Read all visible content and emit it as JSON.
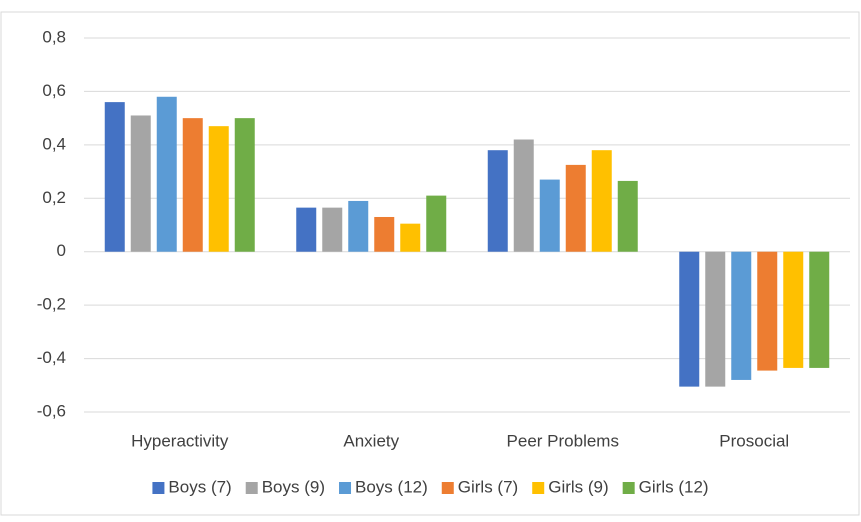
{
  "chart_data": {
    "type": "bar",
    "categories": [
      "Hyperactivity",
      "Anxiety",
      "Peer Problems",
      "Prosocial"
    ],
    "series": [
      {
        "name": "Boys (7)",
        "color": "#4472c4",
        "values": [
          0.56,
          0.165,
          0.38,
          -0.505
        ]
      },
      {
        "name": "Boys (9)",
        "color": "#a5a5a5",
        "values": [
          0.51,
          0.165,
          0.42,
          -0.505
        ]
      },
      {
        "name": "Boys (12)",
        "color": "#5b9bd5",
        "values": [
          0.58,
          0.19,
          0.27,
          -0.48
        ]
      },
      {
        "name": "Girls (7)",
        "color": "#ed7d31",
        "values": [
          0.5,
          0.13,
          0.325,
          -0.445
        ]
      },
      {
        "name": "Girls (9)",
        "color": "#ffc000",
        "values": [
          0.47,
          0.105,
          0.38,
          -0.435
        ]
      },
      {
        "name": "Girls (12)",
        "color": "#70ad47",
        "values": [
          0.5,
          0.21,
          0.265,
          -0.435
        ]
      }
    ],
    "ylim": [
      -0.6,
      0.8
    ],
    "yticks": [
      {
        "value": -0.6,
        "label": "-0,6"
      },
      {
        "value": -0.4,
        "label": "-0,4"
      },
      {
        "value": -0.2,
        "label": "-0,2"
      },
      0,
      {
        "value": 0.2,
        "label": "0,2"
      },
      {
        "value": 0.4,
        "label": "0,4"
      },
      {
        "value": 0.6,
        "label": "0,6"
      },
      {
        "value": 0.8,
        "label": "0,8"
      }
    ],
    "grid": true,
    "legend": "bottom"
  }
}
